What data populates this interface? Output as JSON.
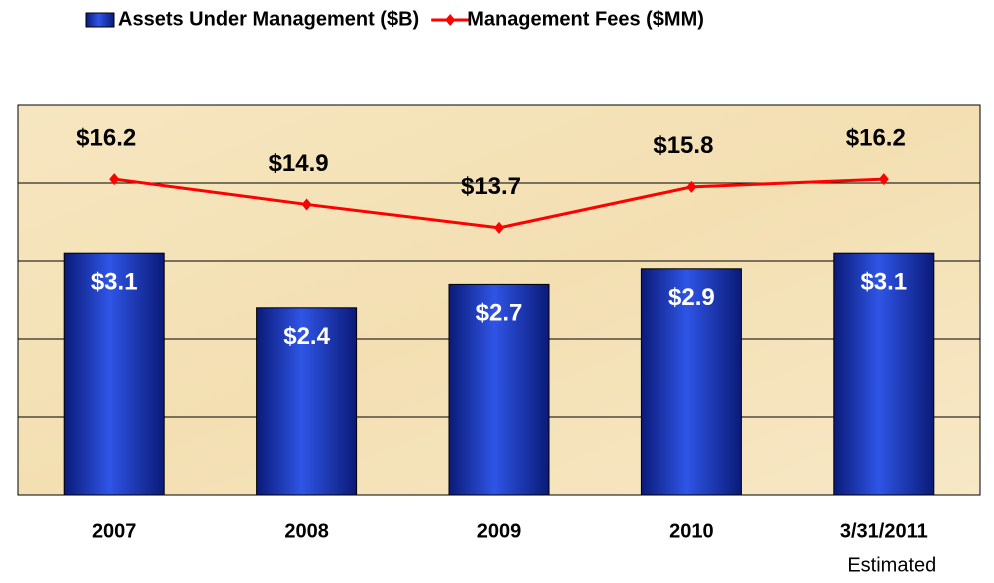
{
  "chart_data": {
    "type": "bar_line",
    "categories": [
      "2007",
      "2008",
      "2009",
      "2010",
      "3/31/2011"
    ],
    "x_annotation": "Estimated",
    "series": [
      {
        "name": "Assets Under Management ($B)",
        "type": "bar",
        "color": "#1f3fc4",
        "values": [
          3.1,
          2.4,
          2.7,
          2.9,
          3.1
        ],
        "value_labels": [
          "$3.1",
          "$2.4",
          "$2.7",
          "$2.9",
          "$3.1"
        ]
      },
      {
        "name": "Management Fees ($MM)",
        "type": "line",
        "axis": "y2",
        "color": "#ff0000",
        "values": [
          16.2,
          14.9,
          13.7,
          15.8,
          16.2
        ],
        "value_labels": [
          "$16.2",
          "$14.9",
          "$13.7",
          "$15.8",
          "$16.2"
        ]
      }
    ],
    "ylim": [
      0,
      5
    ],
    "yticks": [
      0,
      1,
      2,
      3,
      4,
      5
    ],
    "y2lim": [
      0,
      20
    ],
    "grid": true,
    "legend": "top"
  }
}
